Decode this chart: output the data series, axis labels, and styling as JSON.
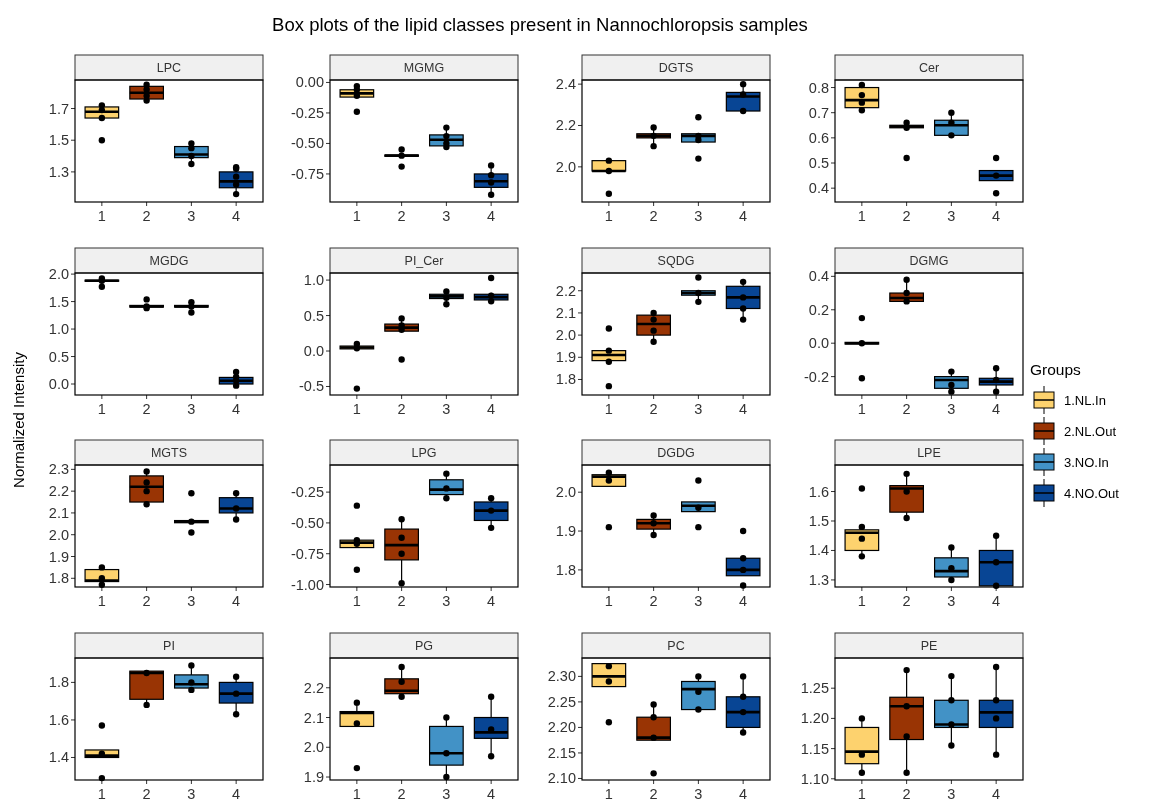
{
  "chart_data": [
    {
      "type": "box",
      "title": "LPC",
      "annotations": [
        "Box plots of the lipid classes present in Nannochloropsis samples"
      ],
      "categories": [
        "1",
        "2",
        "3",
        "4"
      ],
      "ylim": [
        1.11,
        1.88
      ],
      "yticks": [
        1.3,
        1.5,
        1.7
      ],
      "series": [
        {
          "color": "#fdd26e",
          "x": [
            "1"
          ],
          "boxes": [
            {
              "low": 1.64,
              "q1": 1.64,
              "median": 1.68,
              "q3": 1.71,
              "high": 1.72
            }
          ]
        },
        {
          "color": "#993404",
          "x": [
            "2"
          ],
          "boxes": [
            {
              "low": 1.75,
              "q1": 1.76,
              "median": 1.8,
              "q3": 1.84,
              "high": 1.85
            }
          ]
        },
        {
          "color": "#4292c6",
          "x": [
            "3"
          ],
          "boxes": [
            {
              "low": 1.35,
              "q1": 1.39,
              "median": 1.41,
              "q3": 1.46,
              "high": 1.48
            }
          ]
        },
        {
          "color": "#084594",
          "x": [
            "4"
          ],
          "boxes": [
            {
              "low": 1.16,
              "q1": 1.2,
              "median": 1.24,
              "q3": 1.3,
              "high": 1.33
            }
          ]
        },
        {
          "type": "scatter",
          "color": "#000000",
          "x": [
            "1",
            "1",
            "1",
            "1",
            "2",
            "2",
            "2",
            "2",
            "3",
            "3",
            "3",
            "3",
            "4",
            "4",
            "4",
            "4",
            "4"
          ],
          "values": [
            1.5,
            1.64,
            1.69,
            1.72,
            1.75,
            1.78,
            1.82,
            1.85,
            1.35,
            1.4,
            1.45,
            1.48,
            1.16,
            1.22,
            1.27,
            1.32,
            1.33
          ]
        }
      ]
    },
    {
      "type": "box",
      "title": "MGMG",
      "categories": [
        "1",
        "2",
        "3",
        "4"
      ],
      "ylim": [
        -0.98,
        0.02
      ],
      "yticks": [
        -0.75,
        {
          "value": -0.5,
          "label": "-0.50"
        },
        -0.25,
        {
          "value": 0,
          "label": "0.00"
        }
      ],
      "series": [
        {
          "color": "#fdd26e",
          "x": [
            "1"
          ],
          "boxes": [
            {
              "low": -0.12,
              "q1": -0.12,
              "median": -0.09,
              "q3": -0.06,
              "high": -0.03
            }
          ]
        },
        {
          "color": "#993404",
          "x": [
            "2"
          ],
          "boxes": [
            {
              "low": -0.605,
              "q1": -0.605,
              "median": -0.6,
              "q3": -0.595,
              "high": -0.595
            }
          ]
        },
        {
          "color": "#4292c6",
          "x": [
            "3"
          ],
          "boxes": [
            {
              "low": -0.53,
              "q1": -0.52,
              "median": -0.47,
              "q3": -0.43,
              "high": -0.37
            }
          ]
        },
        {
          "color": "#084594",
          "x": [
            "4"
          ],
          "boxes": [
            {
              "low": -0.92,
              "q1": -0.86,
              "median": -0.81,
              "q3": -0.75,
              "high": -0.68
            }
          ]
        },
        {
          "type": "scatter",
          "color": "#000000",
          "x": [
            "1",
            "1",
            "1",
            "1",
            "2",
            "2",
            "2",
            "3",
            "3",
            "3",
            "3",
            "4",
            "4",
            "4",
            "4"
          ],
          "values": [
            -0.24,
            -0.11,
            -0.06,
            -0.03,
            -0.55,
            -0.6,
            -0.69,
            -0.37,
            -0.44,
            -0.5,
            -0.53,
            -0.68,
            -0.76,
            -0.82,
            -0.92
          ]
        }
      ]
    },
    {
      "type": "box",
      "title": "DGTS",
      "categories": [
        "1",
        "2",
        "3",
        "4"
      ],
      "ylim": [
        1.83,
        2.42
      ],
      "yticks": [
        {
          "value": 2.0,
          "label": "2.0"
        },
        2.2,
        2.4
      ],
      "series": [
        {
          "color": "#fdd26e",
          "x": [
            "1"
          ],
          "boxes": [
            {
              "low": 1.98,
              "q1": 1.98,
              "median": 1.98,
              "q3": 2.03,
              "high": 2.04
            }
          ]
        },
        {
          "color": "#993404",
          "x": [
            "2"
          ],
          "boxes": [
            {
              "low": 2.1,
              "q1": 2.14,
              "median": 2.15,
              "q3": 2.16,
              "high": 2.19
            }
          ]
        },
        {
          "color": "#4292c6",
          "x": [
            "3"
          ],
          "boxes": [
            {
              "low": 2.12,
              "q1": 2.12,
              "median": 2.15,
              "q3": 2.16,
              "high": 2.16
            }
          ]
        },
        {
          "color": "#084594",
          "x": [
            "4"
          ],
          "boxes": [
            {
              "low": 2.27,
              "q1": 2.27,
              "median": 2.34,
              "q3": 2.36,
              "high": 2.4
            }
          ]
        },
        {
          "type": "scatter",
          "color": "#000000",
          "x": [
            "1",
            "1",
            "1",
            "2",
            "2",
            "2",
            "3",
            "3",
            "3",
            "3",
            "4",
            "4",
            "4"
          ],
          "values": [
            1.87,
            1.98,
            2.03,
            2.1,
            2.15,
            2.19,
            2.04,
            2.13,
            2.15,
            2.24,
            2.27,
            2.35,
            2.4
          ]
        }
      ]
    },
    {
      "type": "box",
      "title": "Cer",
      "categories": [
        "1",
        "2",
        "3",
        "4"
      ],
      "ylim": [
        0.345,
        0.83
      ],
      "yticks": [
        0.4,
        0.5,
        0.6,
        0.7,
        0.8
      ],
      "series": [
        {
          "color": "#fdd26e",
          "x": [
            "1"
          ],
          "boxes": [
            {
              "low": 0.71,
              "q1": 0.72,
              "median": 0.75,
              "q3": 0.8,
              "high": 0.81
            }
          ]
        },
        {
          "color": "#993404",
          "x": [
            "2"
          ],
          "boxes": [
            {
              "low": 0.64,
              "q1": 0.64,
              "median": 0.645,
              "q3": 0.65,
              "high": 0.66
            }
          ]
        },
        {
          "color": "#4292c6",
          "x": [
            "3"
          ],
          "boxes": [
            {
              "low": 0.61,
              "q1": 0.61,
              "median": 0.65,
              "q3": 0.67,
              "high": 0.7
            }
          ]
        },
        {
          "color": "#084594",
          "x": [
            "4"
          ],
          "boxes": [
            {
              "low": 0.43,
              "q1": 0.43,
              "median": 0.45,
              "q3": 0.47,
              "high": 0.47
            }
          ]
        },
        {
          "type": "scatter",
          "color": "#000000",
          "x": [
            "1",
            "1",
            "1",
            "1",
            "2",
            "2",
            "2",
            "3",
            "3",
            "3",
            "4",
            "4",
            "4"
          ],
          "values": [
            0.71,
            0.74,
            0.77,
            0.81,
            0.52,
            0.64,
            0.66,
            0.61,
            0.66,
            0.7,
            0.38,
            0.45,
            0.52
          ]
        }
      ]
    },
    {
      "type": "box",
      "title": "MGDG",
      "ylabel": "Normalized Intensity",
      "categories": [
        "1",
        "2",
        "3",
        "4"
      ],
      "ylim": [
        -0.2,
        2.02
      ],
      "yticks": [
        {
          "value": 0,
          "label": "0.0"
        },
        0.5,
        {
          "value": 1,
          "label": "1.0"
        },
        1.5,
        {
          "value": 2,
          "label": "2.0"
        }
      ],
      "series": [
        {
          "color": "#fdd26e",
          "x": [
            "1"
          ],
          "boxes": [
            {
              "low": 1.85,
              "q1": 1.87,
              "median": 1.88,
              "q3": 1.89,
              "high": 1.92
            }
          ]
        },
        {
          "color": "#993404",
          "x": [
            "2"
          ],
          "boxes": [
            {
              "low": 1.38,
              "q1": 1.4,
              "median": 1.41,
              "q3": 1.43,
              "high": 1.43
            }
          ]
        },
        {
          "color": "#4292c6",
          "x": [
            "3"
          ],
          "boxes": [
            {
              "low": 1.4,
              "q1": 1.4,
              "median": 1.41,
              "q3": 1.43,
              "high": 1.43
            }
          ]
        },
        {
          "color": "#084594",
          "x": [
            "4"
          ],
          "boxes": [
            {
              "low": -0.03,
              "q1": 0.0,
              "median": 0.06,
              "q3": 0.12,
              "high": 0.22
            }
          ]
        },
        {
          "type": "scatter",
          "color": "#000000",
          "x": [
            "1",
            "1",
            "1",
            "2",
            "2",
            "2",
            "3",
            "3",
            "3",
            "4",
            "4",
            "4",
            "4"
          ],
          "values": [
            1.77,
            1.88,
            1.92,
            1.38,
            1.41,
            1.54,
            1.3,
            1.41,
            1.49,
            -0.03,
            0.06,
            0.13,
            0.22
          ]
        }
      ]
    },
    {
      "type": "box",
      "title": "PI_Cer",
      "categories": [
        "1",
        "2",
        "3",
        "4"
      ],
      "ylim": [
        -0.62,
        1.1
      ],
      "yticks": [
        -0.5,
        {
          "value": 0,
          "label": "0.0"
        },
        0.5,
        {
          "value": 1,
          "label": "1.0"
        }
      ],
      "series": [
        {
          "color": "#fdd26e",
          "x": [
            "1"
          ],
          "boxes": [
            {
              "low": 0.03,
              "q1": 0.03,
              "median": 0.05,
              "q3": 0.07,
              "high": 0.1
            }
          ]
        },
        {
          "color": "#993404",
          "x": [
            "2"
          ],
          "boxes": [
            {
              "low": 0.28,
              "q1": 0.28,
              "median": 0.33,
              "q3": 0.38,
              "high": 0.46
            }
          ]
        },
        {
          "color": "#4292c6",
          "x": [
            "3"
          ],
          "boxes": [
            {
              "low": 0.66,
              "q1": 0.74,
              "median": 0.77,
              "q3": 0.8,
              "high": 0.84
            }
          ]
        },
        {
          "color": "#084594",
          "x": [
            "4"
          ],
          "boxes": [
            {
              "low": 0.7,
              "q1": 0.72,
              "median": 0.76,
              "q3": 0.8,
              "high": 0.82
            }
          ]
        },
        {
          "type": "scatter",
          "color": "#000000",
          "x": [
            "1",
            "1",
            "1",
            "2",
            "2",
            "2",
            "2",
            "3",
            "3",
            "3",
            "4",
            "4",
            "4"
          ],
          "values": [
            -0.53,
            0.04,
            0.1,
            -0.12,
            0.3,
            0.36,
            0.46,
            0.66,
            0.75,
            0.84,
            0.7,
            0.78,
            1.03
          ]
        }
      ]
    },
    {
      "type": "box",
      "title": "SQDG",
      "categories": [
        "1",
        "2",
        "3",
        "4"
      ],
      "ylim": [
        1.73,
        2.28
      ],
      "yticks": [
        1.8,
        1.9,
        {
          "value": 2,
          "label": "2.0"
        },
        2.1,
        2.2
      ],
      "series": [
        {
          "color": "#fdd26e",
          "x": [
            "1"
          ],
          "boxes": [
            {
              "low": 1.88,
              "q1": 1.885,
              "median": 1.91,
              "q3": 1.93,
              "high": 1.94
            }
          ]
        },
        {
          "color": "#993404",
          "x": [
            "2"
          ],
          "boxes": [
            {
              "low": 1.97,
              "q1": 2.0,
              "median": 2.05,
              "q3": 2.09,
              "high": 2.11
            }
          ]
        },
        {
          "color": "#4292c6",
          "x": [
            "3"
          ],
          "boxes": [
            {
              "low": 2.15,
              "q1": 2.18,
              "median": 2.19,
              "q3": 2.2,
              "high": 2.2
            }
          ]
        },
        {
          "color": "#084594",
          "x": [
            "4"
          ],
          "boxes": [
            {
              "low": 2.07,
              "q1": 2.12,
              "median": 2.17,
              "q3": 2.22,
              "high": 2.24
            }
          ]
        },
        {
          "type": "scatter",
          "color": "#000000",
          "x": [
            "1",
            "1",
            "1",
            "1",
            "2",
            "2",
            "2",
            "2",
            "3",
            "3",
            "3",
            "4",
            "4",
            "4",
            "4"
          ],
          "values": [
            1.77,
            1.88,
            1.93,
            2.03,
            1.97,
            2.02,
            2.07,
            2.1,
            2.15,
            2.19,
            2.26,
            2.07,
            2.12,
            2.17,
            2.24
          ]
        }
      ]
    },
    {
      "type": "box",
      "title": "DGMG",
      "legend": "right",
      "legend_title": "Groups",
      "categories": [
        "1",
        "2",
        "3",
        "4"
      ],
      "ylim": [
        -0.31,
        0.42
      ],
      "yticks": [
        -0.2,
        {
          "value": 0,
          "label": "0.0"
        },
        0.2,
        0.4
      ],
      "series": [
        {
          "name": "1.NL.In",
          "color": "#fdd26e",
          "x": [
            "1"
          ],
          "boxes": [
            {
              "low": -0.005,
              "q1": -0.005,
              "median": 0.0,
              "q3": 0.005,
              "high": 0.005
            }
          ]
        },
        {
          "name": "2.NL.Out",
          "color": "#993404",
          "x": [
            "2"
          ],
          "boxes": [
            {
              "low": 0.25,
              "q1": 0.25,
              "median": 0.27,
              "q3": 0.3,
              "high": 0.38
            }
          ]
        },
        {
          "name": "3.NO.In",
          "color": "#4292c6",
          "x": [
            "3"
          ],
          "boxes": [
            {
              "low": -0.29,
              "q1": -0.27,
              "median": -0.22,
              "q3": -0.2,
              "high": -0.17
            }
          ]
        },
        {
          "name": "4.NO.Out",
          "color": "#084594",
          "x": [
            "4"
          ],
          "boxes": [
            {
              "low": -0.29,
              "q1": -0.25,
              "median": -0.23,
              "q3": -0.21,
              "high": -0.15
            }
          ]
        },
        {
          "type": "scatter",
          "color": "#000000",
          "x": [
            "1",
            "1",
            "1",
            "2",
            "2",
            "2",
            "3",
            "3",
            "3",
            "4",
            "4",
            "4"
          ],
          "values": [
            -0.21,
            0.0,
            0.15,
            0.25,
            0.3,
            0.38,
            -0.29,
            -0.25,
            -0.17,
            -0.29,
            -0.22,
            -0.15
          ]
        }
      ]
    },
    {
      "type": "box",
      "title": "MGTS",
      "categories": [
        "1",
        "2",
        "3",
        "4"
      ],
      "ylim": [
        1.76,
        2.32
      ],
      "yticks": [
        1.8,
        1.9,
        {
          "value": 2,
          "label": "2.0"
        },
        2.1,
        2.2,
        2.3
      ],
      "series": [
        {
          "color": "#fdd26e",
          "x": [
            "1"
          ],
          "boxes": [
            {
              "low": 1.77,
              "q1": 1.785,
              "median": 1.79,
              "q3": 1.84,
              "high": 1.85
            }
          ]
        },
        {
          "color": "#993404",
          "x": [
            "2"
          ],
          "boxes": [
            {
              "low": 2.14,
              "q1": 2.15,
              "median": 2.22,
              "q3": 2.27,
              "high": 2.29
            }
          ]
        },
        {
          "color": "#4292c6",
          "x": [
            "3"
          ],
          "boxes": [
            {
              "low": 2.055,
              "q1": 2.055,
              "median": 2.06,
              "q3": 2.065,
              "high": 2.065
            }
          ]
        },
        {
          "color": "#084594",
          "x": [
            "4"
          ],
          "boxes": [
            {
              "low": 2.07,
              "q1": 2.1,
              "median": 2.12,
              "q3": 2.17,
              "high": 2.19
            }
          ]
        },
        {
          "type": "scatter",
          "color": "#000000",
          "x": [
            "1",
            "1",
            "1",
            "2",
            "2",
            "2",
            "2",
            "3",
            "3",
            "3",
            "4",
            "4",
            "4"
          ],
          "values": [
            1.77,
            1.8,
            1.85,
            2.14,
            2.2,
            2.24,
            2.29,
            2.01,
            2.06,
            2.19,
            2.07,
            2.12,
            2.19
          ]
        }
      ]
    },
    {
      "type": "box",
      "title": "LPG",
      "categories": [
        "1",
        "2",
        "3",
        "4"
      ],
      "ylim": [
        -1.02,
        -0.03
      ],
      "yticks": [
        {
          "value": -1.0,
          "label": "-1.00"
        },
        -0.75,
        {
          "value": -0.5,
          "label": "-0.50"
        },
        -0.25
      ],
      "series": [
        {
          "color": "#fdd26e",
          "x": [
            "1"
          ],
          "boxes": [
            {
              "low": -0.7,
              "q1": -0.7,
              "median": -0.66,
              "q3": -0.64,
              "high": -0.64
            }
          ]
        },
        {
          "color": "#993404",
          "x": [
            "2"
          ],
          "boxes": [
            {
              "low": -0.99,
              "q1": -0.8,
              "median": -0.68,
              "q3": -0.55,
              "high": -0.47
            }
          ]
        },
        {
          "color": "#4292c6",
          "x": [
            "3"
          ],
          "boxes": [
            {
              "low": -0.3,
              "q1": -0.27,
              "median": -0.23,
              "q3": -0.15,
              "high": -0.1
            }
          ]
        },
        {
          "color": "#084594",
          "x": [
            "4"
          ],
          "boxes": [
            {
              "low": -0.54,
              "q1": -0.48,
              "median": -0.4,
              "q3": -0.33,
              "high": -0.3
            }
          ]
        },
        {
          "type": "scatter",
          "color": "#000000",
          "x": [
            "1",
            "1",
            "1",
            "1",
            "2",
            "2",
            "2",
            "2",
            "3",
            "3",
            "3",
            "4",
            "4",
            "4"
          ],
          "values": [
            -0.88,
            -0.67,
            -0.64,
            -0.36,
            -0.99,
            -0.75,
            -0.62,
            -0.47,
            -0.3,
            -0.22,
            -0.1,
            -0.54,
            -0.4,
            -0.3
          ]
        }
      ]
    },
    {
      "type": "box",
      "title": "DGDG",
      "categories": [
        "1",
        "2",
        "3",
        "4"
      ],
      "ylim": [
        1.756,
        2.07
      ],
      "yticks": [
        1.8,
        1.9,
        {
          "value": 2,
          "label": "2.0"
        }
      ],
      "series": [
        {
          "color": "#fdd26e",
          "x": [
            "1"
          ],
          "boxes": [
            {
              "low": 2.015,
              "q1": 2.015,
              "median": 2.04,
              "q3": 2.045,
              "high": 2.05
            }
          ]
        },
        {
          "color": "#993404",
          "x": [
            "2"
          ],
          "boxes": [
            {
              "low": 1.89,
              "q1": 1.905,
              "median": 1.92,
              "q3": 1.93,
              "high": 1.94
            }
          ]
        },
        {
          "color": "#4292c6",
          "x": [
            "3"
          ],
          "boxes": [
            {
              "low": 1.95,
              "q1": 1.95,
              "median": 1.965,
              "q3": 1.975,
              "high": 1.975
            }
          ]
        },
        {
          "color": "#084594",
          "x": [
            "4"
          ],
          "boxes": [
            {
              "low": 1.785,
              "q1": 1.785,
              "median": 1.8,
              "q3": 1.83,
              "high": 1.83
            }
          ]
        },
        {
          "type": "scatter",
          "color": "#000000",
          "x": [
            "1",
            "1",
            "1",
            "2",
            "2",
            "2",
            "3",
            "3",
            "3",
            "4",
            "4",
            "4",
            "4"
          ],
          "values": [
            1.91,
            2.03,
            2.05,
            1.89,
            1.92,
            1.94,
            1.91,
            1.96,
            2.03,
            1.76,
            1.8,
            1.83,
            1.9
          ]
        }
      ]
    },
    {
      "type": "box",
      "title": "LPE",
      "categories": [
        "1",
        "2",
        "3",
        "4"
      ],
      "ylim": [
        1.276,
        1.69
      ],
      "yticks": [
        1.3,
        1.4,
        1.5,
        1.6
      ],
      "series": [
        {
          "color": "#fdd26e",
          "x": [
            "1"
          ],
          "boxes": [
            {
              "low": 1.38,
              "q1": 1.4,
              "median": 1.46,
              "q3": 1.47,
              "high": 1.48
            }
          ]
        },
        {
          "color": "#993404",
          "x": [
            "2"
          ],
          "boxes": [
            {
              "low": 1.51,
              "q1": 1.53,
              "median": 1.61,
              "q3": 1.62,
              "high": 1.66
            }
          ]
        },
        {
          "color": "#4292c6",
          "x": [
            "3"
          ],
          "boxes": [
            {
              "low": 1.3,
              "q1": 1.31,
              "median": 1.33,
              "q3": 1.375,
              "high": 1.41
            }
          ]
        },
        {
          "color": "#084594",
          "x": [
            "4"
          ],
          "boxes": [
            {
              "low": 1.28,
              "q1": 1.28,
              "median": 1.36,
              "q3": 1.4,
              "high": 1.45
            }
          ]
        },
        {
          "type": "scatter",
          "color": "#000000",
          "x": [
            "1",
            "1",
            "1",
            "1",
            "2",
            "2",
            "2",
            "3",
            "3",
            "3",
            "4",
            "4",
            "4"
          ],
          "values": [
            1.38,
            1.44,
            1.48,
            1.61,
            1.51,
            1.6,
            1.66,
            1.3,
            1.34,
            1.41,
            1.28,
            1.36,
            1.45
          ]
        }
      ]
    },
    {
      "type": "box",
      "title": "PI",
      "categories": [
        "1",
        "2",
        "3",
        "4"
      ],
      "ylim": [
        1.28,
        1.93
      ],
      "yticks": [
        1.4,
        1.6,
        1.8
      ],
      "series": [
        {
          "color": "#fdd26e",
          "x": [
            "1"
          ],
          "boxes": [
            {
              "low": 1.4,
              "q1": 1.4,
              "median": 1.41,
              "q3": 1.44,
              "high": 1.44
            }
          ]
        },
        {
          "color": "#993404",
          "x": [
            "2"
          ],
          "boxes": [
            {
              "low": 1.68,
              "q1": 1.71,
              "median": 1.85,
              "q3": 1.86,
              "high": 1.86
            }
          ]
        },
        {
          "color": "#4292c6",
          "x": [
            "3"
          ],
          "boxes": [
            {
              "low": 1.76,
              "q1": 1.77,
              "median": 1.79,
              "q3": 1.84,
              "high": 1.89
            }
          ]
        },
        {
          "color": "#084594",
          "x": [
            "4"
          ],
          "boxes": [
            {
              "low": 1.63,
              "q1": 1.69,
              "median": 1.74,
              "q3": 1.8,
              "high": 1.83
            }
          ]
        },
        {
          "type": "scatter",
          "color": "#000000",
          "x": [
            "1",
            "1",
            "1",
            "2",
            "2",
            "3",
            "3",
            "3",
            "4",
            "4",
            "4"
          ],
          "values": [
            1.29,
            1.42,
            1.57,
            1.68,
            1.85,
            1.76,
            1.8,
            1.89,
            1.63,
            1.74,
            1.83
          ]
        }
      ]
    },
    {
      "type": "box",
      "title": "PG",
      "categories": [
        "1",
        "2",
        "3",
        "4"
      ],
      "ylim": [
        1.89,
        2.3
      ],
      "yticks": [
        1.9,
        {
          "value": 2,
          "label": "2.0"
        },
        2.1,
        2.2
      ],
      "series": [
        {
          "color": "#fdd26e",
          "x": [
            "1"
          ],
          "boxes": [
            {
              "low": 2.07,
              "q1": 2.07,
              "median": 2.115,
              "q3": 2.12,
              "high": 2.15
            }
          ]
        },
        {
          "color": "#993404",
          "x": [
            "2"
          ],
          "boxes": [
            {
              "low": 2.17,
              "q1": 2.18,
              "median": 2.19,
              "q3": 2.23,
              "high": 2.27
            }
          ]
        },
        {
          "color": "#4292c6",
          "x": [
            "3"
          ],
          "boxes": [
            {
              "low": 1.9,
              "q1": 1.94,
              "median": 1.98,
              "q3": 2.07,
              "high": 2.1
            }
          ]
        },
        {
          "color": "#084594",
          "x": [
            "4"
          ],
          "boxes": [
            {
              "low": 1.97,
              "q1": 2.03,
              "median": 2.05,
              "q3": 2.1,
              "high": 2.17
            }
          ]
        },
        {
          "type": "scatter",
          "color": "#000000",
          "x": [
            "1",
            "1",
            "1",
            "2",
            "2",
            "2",
            "3",
            "3",
            "3",
            "4",
            "4",
            "4"
          ],
          "values": [
            1.93,
            2.08,
            2.15,
            2.17,
            2.22,
            2.27,
            1.9,
            1.98,
            2.1,
            1.97,
            2.06,
            2.17
          ]
        }
      ]
    },
    {
      "type": "box",
      "title": "PC",
      "categories": [
        "1",
        "2",
        "3",
        "4"
      ],
      "ylim": [
        2.097,
        2.336
      ],
      "yticks": [
        {
          "value": 2.1,
          "label": "2.10"
        },
        2.15,
        {
          "value": 2.2,
          "label": "2.20"
        },
        2.25,
        {
          "value": 2.3,
          "label": "2.30"
        }
      ],
      "series": [
        {
          "color": "#fdd26e",
          "x": [
            "1"
          ],
          "boxes": [
            {
              "low": 2.28,
              "q1": 2.28,
              "median": 2.3,
              "q3": 2.325,
              "high": 2.325
            }
          ]
        },
        {
          "color": "#993404",
          "x": [
            "2"
          ],
          "boxes": [
            {
              "low": 2.175,
              "q1": 2.175,
              "median": 2.18,
              "q3": 2.22,
              "high": 2.245
            }
          ]
        },
        {
          "color": "#4292c6",
          "x": [
            "3"
          ],
          "boxes": [
            {
              "low": 2.235,
              "q1": 2.235,
              "median": 2.275,
              "q3": 2.29,
              "high": 2.3
            }
          ]
        },
        {
          "color": "#084594",
          "x": [
            "4"
          ],
          "boxes": [
            {
              "low": 2.19,
              "q1": 2.2,
              "median": 2.23,
              "q3": 2.26,
              "high": 2.3
            }
          ]
        },
        {
          "type": "scatter",
          "color": "#000000",
          "x": [
            "1",
            "1",
            "1",
            "2",
            "2",
            "2",
            "2",
            "3",
            "3",
            "3",
            "4",
            "4",
            "4",
            "4"
          ],
          "values": [
            2.21,
            2.29,
            2.32,
            2.11,
            2.18,
            2.22,
            2.245,
            2.235,
            2.27,
            2.3,
            2.19,
            2.23,
            2.26,
            2.3
          ]
        }
      ]
    },
    {
      "type": "box",
      "title": "PE",
      "categories": [
        "1",
        "2",
        "3",
        "4"
      ],
      "ylim": [
        1.098,
        1.3
      ],
      "yticks": [
        {
          "value": 1.1,
          "label": "1.10"
        },
        1.15,
        {
          "value": 1.2,
          "label": "1.20"
        },
        1.25
      ],
      "series": [
        {
          "color": "#fdd26e",
          "x": [
            "1"
          ],
          "boxes": [
            {
              "low": 1.11,
              "q1": 1.125,
              "median": 1.145,
              "q3": 1.185,
              "high": 1.2
            }
          ]
        },
        {
          "color": "#993404",
          "x": [
            "2"
          ],
          "boxes": [
            {
              "low": 1.11,
              "q1": 1.165,
              "median": 1.22,
              "q3": 1.235,
              "high": 1.28
            }
          ]
        },
        {
          "color": "#4292c6",
          "x": [
            "3"
          ],
          "boxes": [
            {
              "low": 1.155,
              "q1": 1.185,
              "median": 1.19,
              "q3": 1.23,
              "high": 1.27
            }
          ]
        },
        {
          "color": "#084594",
          "x": [
            "4"
          ],
          "boxes": [
            {
              "low": 1.14,
              "q1": 1.185,
              "median": 1.21,
              "q3": 1.23,
              "high": 1.285
            }
          ]
        },
        {
          "type": "scatter",
          "color": "#000000",
          "x": [
            "1",
            "1",
            "1",
            "2",
            "2",
            "2",
            "2",
            "3",
            "3",
            "3",
            "3",
            "4",
            "4",
            "4",
            "4"
          ],
          "values": [
            1.11,
            1.14,
            1.2,
            1.11,
            1.17,
            1.22,
            1.28,
            1.155,
            1.19,
            1.23,
            1.27,
            1.14,
            1.2,
            1.23,
            1.285
          ]
        }
      ]
    }
  ]
}
